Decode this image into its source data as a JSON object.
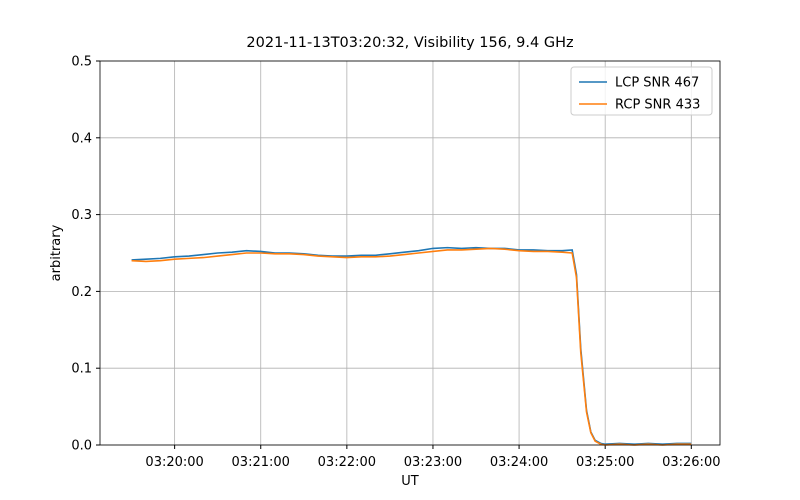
{
  "chart_data": {
    "type": "line",
    "title": "2021-11-13T03:20:32, Visibility 156, 9.4 GHz",
    "xlabel": "UT",
    "ylabel": "arbitrary",
    "x": [
      "03:19:30",
      "03:19:40",
      "03:19:50",
      "03:20:00",
      "03:20:10",
      "03:20:20",
      "03:20:30",
      "03:20:40",
      "03:20:50",
      "03:21:00",
      "03:21:10",
      "03:21:20",
      "03:21:30",
      "03:21:40",
      "03:21:50",
      "03:22:00",
      "03:22:10",
      "03:22:20",
      "03:22:30",
      "03:22:40",
      "03:22:50",
      "03:23:00",
      "03:23:10",
      "03:23:20",
      "03:23:30",
      "03:23:40",
      "03:23:50",
      "03:24:00",
      "03:24:10",
      "03:24:20",
      "03:24:30",
      "03:24:37",
      "03:24:40",
      "03:24:43",
      "03:24:47",
      "03:24:50",
      "03:24:53",
      "03:24:57",
      "03:25:00",
      "03:25:10",
      "03:25:20",
      "03:25:30",
      "03:25:40",
      "03:25:50",
      "03:26:00"
    ],
    "series": [
      {
        "name": "LCP SNR 467",
        "color": "#1f77b4",
        "values": [
          0.241,
          0.242,
          0.243,
          0.245,
          0.246,
          0.248,
          0.25,
          0.251,
          0.253,
          0.252,
          0.25,
          0.25,
          0.249,
          0.247,
          0.246,
          0.246,
          0.247,
          0.247,
          0.249,
          0.251,
          0.253,
          0.256,
          0.257,
          0.256,
          0.257,
          0.256,
          0.256,
          0.254,
          0.254,
          0.253,
          0.253,
          0.254,
          0.222,
          0.125,
          0.045,
          0.017,
          0.006,
          0.002,
          0.001,
          0.002,
          0.001,
          0.002,
          0.001,
          0.002,
          0.002
        ]
      },
      {
        "name": "RCP SNR 433",
        "color": "#ff7f0e",
        "values": [
          0.24,
          0.239,
          0.24,
          0.242,
          0.243,
          0.244,
          0.246,
          0.248,
          0.25,
          0.25,
          0.249,
          0.249,
          0.248,
          0.246,
          0.245,
          0.244,
          0.245,
          0.245,
          0.246,
          0.248,
          0.25,
          0.252,
          0.254,
          0.254,
          0.255,
          0.256,
          0.255,
          0.253,
          0.252,
          0.252,
          0.251,
          0.25,
          0.218,
          0.12,
          0.043,
          0.016,
          0.005,
          0.001,
          0.0,
          0.001,
          0.0,
          0.001,
          0.0,
          0.001,
          0.001
        ]
      }
    ],
    "xlim": [
      "03:19:08",
      "03:26:20"
    ],
    "xticks": [
      "03:20:00",
      "03:21:00",
      "03:22:00",
      "03:23:00",
      "03:24:00",
      "03:25:00",
      "03:26:00"
    ],
    "ylim": [
      0,
      0.5
    ],
    "yticks": [
      {
        "value": 0,
        "label": "0.0"
      },
      0.1,
      0.2,
      0.3,
      0.4,
      0.5
    ],
    "grid": true,
    "legend": "upper right"
  }
}
